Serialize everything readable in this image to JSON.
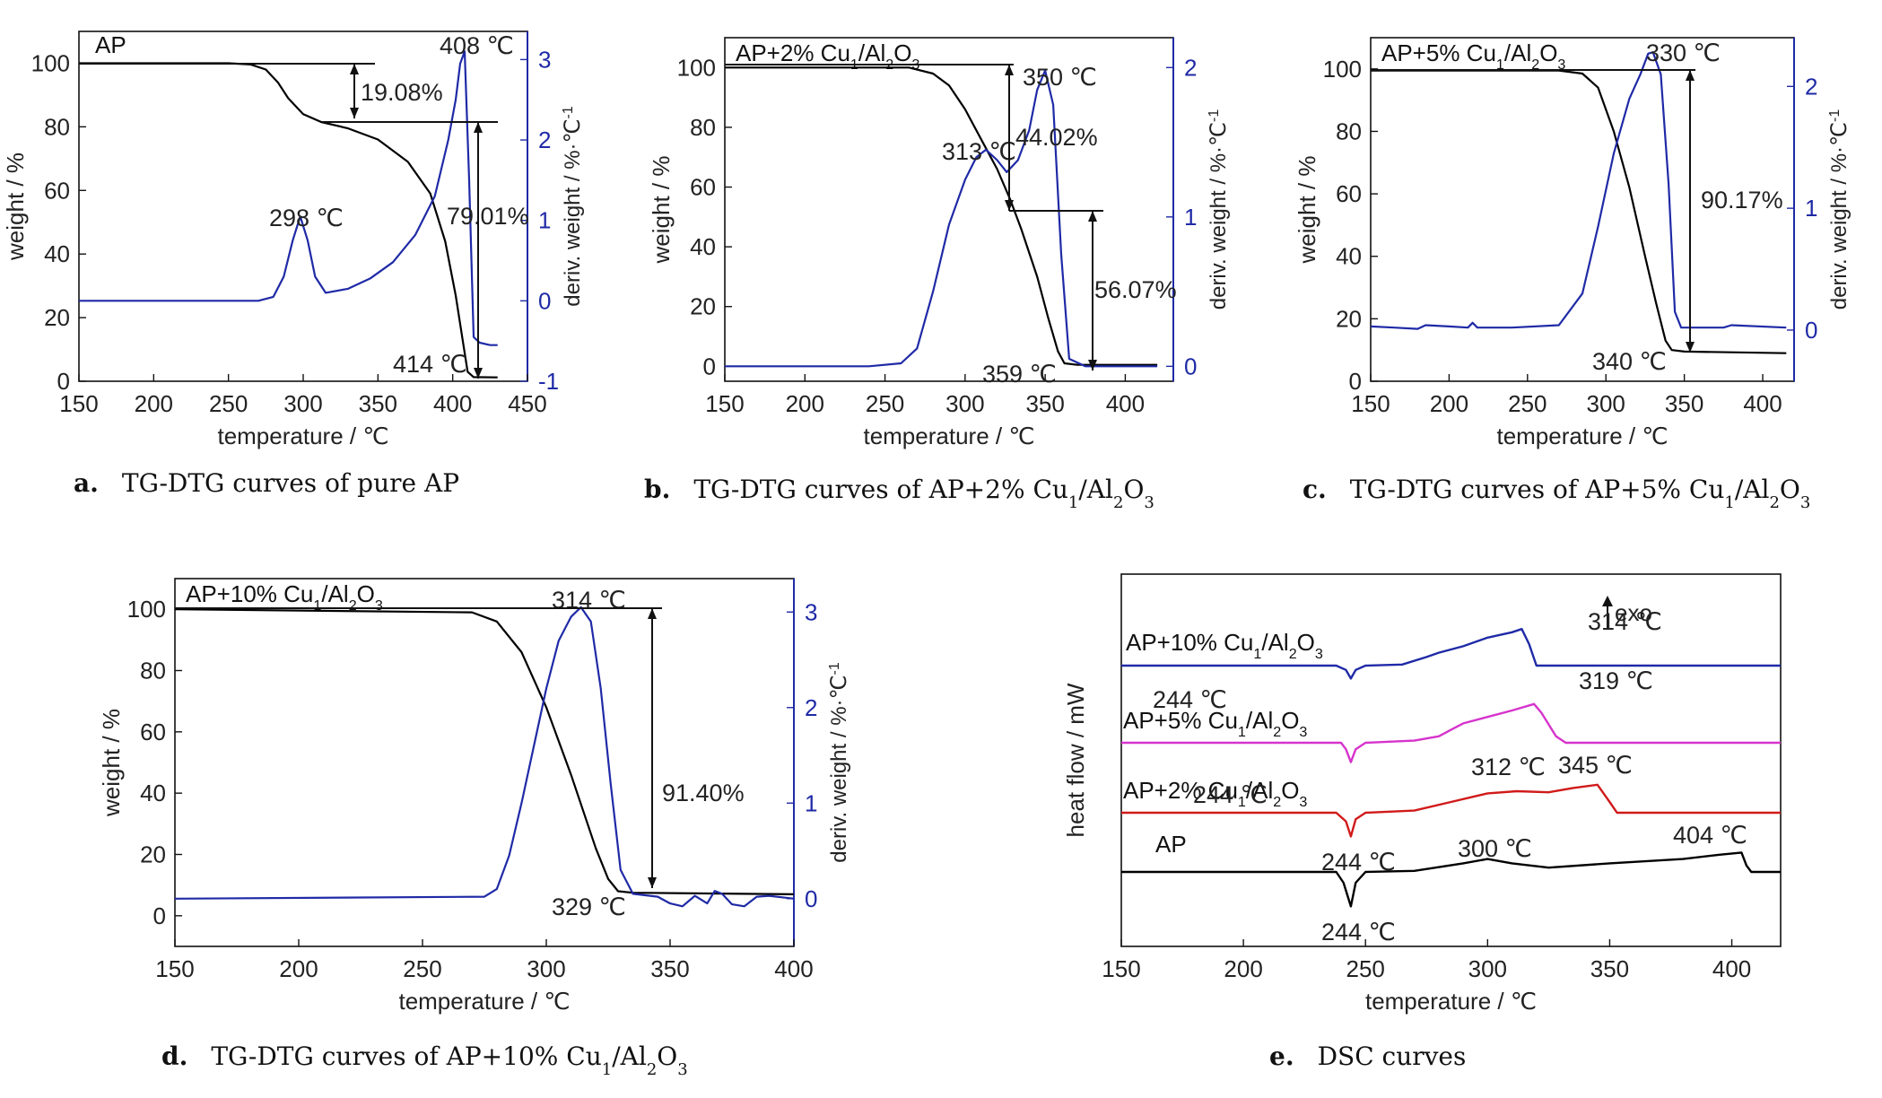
{
  "chart_data": [
    {
      "id": "a",
      "type": "line",
      "caption": {
        "letter": "a.",
        "text": "TG-DTG curves of pure AP"
      },
      "legend": "AP",
      "xlabel": "temperature / ℃",
      "ylabel": "weight / %",
      "y2label": "deriv. weight / %·℃",
      "y2label_sup": "-1",
      "xlim": [
        150,
        450
      ],
      "ylim": [
        0,
        110
      ],
      "y2lim": [
        -1,
        3.35
      ],
      "xticks": [
        150,
        200,
        250,
        300,
        350,
        400,
        450
      ],
      "yticks": [
        0,
        20,
        40,
        60,
        80,
        100
      ],
      "y2ticks": [
        -1,
        0,
        1,
        2,
        3
      ],
      "series": [
        {
          "axis": "left",
          "color": "#000000",
          "x": [
            150,
            250,
            265,
            275,
            283,
            290,
            300,
            312,
            330,
            350,
            370,
            385,
            395,
            402,
            407,
            410,
            414,
            430
          ],
          "y": [
            100,
            100,
            99.6,
            98,
            94,
            89,
            84,
            81.5,
            79.5,
            76,
            69,
            59,
            44,
            27,
            12,
            3,
            1.3,
            1.2
          ]
        },
        {
          "axis": "right",
          "color": "#1f2aa6",
          "x": [
            150,
            270,
            280,
            287,
            293,
            298,
            303,
            308,
            315,
            330,
            345,
            360,
            375,
            388,
            397,
            402,
            405,
            408,
            411,
            414,
            418,
            425,
            430
          ],
          "y": [
            0,
            0,
            0.05,
            0.3,
            0.75,
            1.05,
            0.75,
            0.3,
            0.1,
            0.15,
            0.28,
            0.48,
            0.82,
            1.3,
            2.0,
            2.5,
            2.95,
            3.1,
            1.5,
            -0.45,
            -0.52,
            -0.55,
            -0.55
          ]
        }
      ],
      "annotations": [
        "408 ℃",
        "19.08%",
        "298 ℃",
        "79.01%",
        "414 ℃"
      ]
    },
    {
      "id": "b",
      "type": "line",
      "caption": {
        "letter": "b.",
        "text": "TG-DTG curves of AP+2% Cu",
        "sub1": "1",
        "mid": "/Al",
        "sub2": "2",
        "tail": "O",
        "sub3": "3"
      },
      "legend": {
        "text": "AP+2% Cu",
        "sub1": "1",
        "mid": "/Al",
        "sub2": "2",
        "tail": "O",
        "sub3": "3"
      },
      "xlabel": "temperature / ℃",
      "ylabel": "weight / %",
      "y2label": "deriv. weight / %·℃",
      "y2label_sup": "-1",
      "xlim": [
        150,
        430
      ],
      "ylim": [
        -5,
        110
      ],
      "y2lim": [
        -0.1,
        2.2
      ],
      "xticks": [
        150,
        200,
        250,
        300,
        350,
        400
      ],
      "yticks": [
        0,
        20,
        40,
        60,
        80,
        100
      ],
      "y2ticks": [
        0,
        1,
        2
      ],
      "series": [
        {
          "axis": "left",
          "color": "#000000",
          "x": [
            150,
            265,
            280,
            290,
            300,
            310,
            320,
            328,
            335,
            345,
            352,
            358,
            362,
            370,
            420
          ],
          "y": [
            100,
            100,
            98,
            94,
            86,
            76,
            66,
            56,
            46,
            30,
            16,
            5,
            1,
            0.5,
            0.5
          ]
        },
        {
          "axis": "right",
          "color": "#1f2aa6",
          "x": [
            150,
            240,
            260,
            270,
            280,
            290,
            300,
            307,
            313,
            320,
            326,
            333,
            340,
            345,
            350,
            355,
            360,
            365,
            375,
            420
          ],
          "y": [
            0,
            0,
            0.02,
            0.12,
            0.5,
            0.95,
            1.25,
            1.4,
            1.45,
            1.38,
            1.3,
            1.38,
            1.58,
            1.85,
            1.98,
            1.75,
            0.75,
            0.05,
            0,
            0
          ]
        }
      ],
      "annotations": [
        "350 ℃",
        "313 ℃",
        "44.02%",
        "56.07%",
        "359 ℃"
      ]
    },
    {
      "id": "c",
      "type": "line",
      "caption": {
        "letter": "c.",
        "text": "TG-DTG curves of AP+5% Cu",
        "sub1": "1",
        "mid": "/Al",
        "sub2": "2",
        "tail": "O",
        "sub3": "3"
      },
      "legend": {
        "text": "AP+5% Cu",
        "sub1": "1",
        "mid": "/Al",
        "sub2": "2",
        "tail": "O",
        "sub3": "3"
      },
      "xlabel": "temperature / ℃",
      "ylabel": "weight / %",
      "y2label": "deriv. weight / %·℃",
      "y2label_sup": "-1",
      "xlim": [
        150,
        420
      ],
      "ylim": [
        0,
        110
      ],
      "y2lim": [
        -0.42,
        2.4
      ],
      "xticks": [
        150,
        200,
        250,
        300,
        350,
        400
      ],
      "yticks": [
        0,
        20,
        40,
        60,
        80,
        100
      ],
      "y2ticks": [
        0,
        1,
        2
      ],
      "series": [
        {
          "axis": "left",
          "color": "#000000",
          "x": [
            150,
            270,
            285,
            295,
            305,
            315,
            325,
            332,
            338,
            342,
            350,
            415
          ],
          "y": [
            99.5,
            99.5,
            98.5,
            94,
            80,
            62,
            40,
            25,
            13,
            10,
            9.5,
            9
          ]
        },
        {
          "axis": "right",
          "color": "#1f2aa6",
          "x": [
            150,
            165,
            180,
            185,
            200,
            212,
            215,
            218,
            240,
            270,
            285,
            295,
            305,
            315,
            322,
            327,
            330,
            335,
            340,
            344,
            348,
            360,
            375,
            380,
            415
          ],
          "y": [
            0.03,
            0.02,
            0.01,
            0.04,
            0.03,
            0.02,
            0.06,
            0.02,
            0.02,
            0.04,
            0.3,
            0.85,
            1.45,
            1.9,
            2.1,
            2.27,
            2.28,
            2.1,
            1.2,
            0.15,
            0.02,
            0.02,
            0.02,
            0.04,
            0.02
          ]
        }
      ],
      "annotations": [
        "330 ℃",
        "90.17%",
        "340 ℃"
      ]
    },
    {
      "id": "d",
      "type": "line",
      "caption": {
        "letter": "d.",
        "text": "TG-DTG curves of AP+10% Cu",
        "sub1": "1",
        "mid": "/Al",
        "sub2": "2",
        "tail": "O",
        "sub3": "3"
      },
      "legend": {
        "text": "AP+10% Cu",
        "sub1": "1",
        "mid": "/Al",
        "sub2": "2",
        "tail": "O",
        "sub3": "3"
      },
      "xlabel": "temperature / ℃",
      "ylabel": "weight / %",
      "y2label": "deriv. weight / %·℃",
      "y2label_sup": "-1",
      "xlim": [
        150,
        400
      ],
      "ylim": [
        -10,
        110
      ],
      "y2lim": [
        -0.5,
        3.35
      ],
      "xticks": [
        150,
        200,
        250,
        300,
        350,
        400
      ],
      "yticks": [
        0,
        20,
        40,
        60,
        80,
        100
      ],
      "y2ticks": [
        0,
        1,
        2,
        3
      ],
      "series": [
        {
          "axis": "left",
          "color": "#000000",
          "x": [
            150,
            270,
            280,
            290,
            300,
            310,
            320,
            325,
            329,
            335,
            400
          ],
          "y": [
            100,
            99,
            96,
            86,
            68,
            46,
            22,
            12,
            8,
            7.5,
            7
          ]
        },
        {
          "axis": "right",
          "color": "#1f2aa6",
          "x": [
            150,
            275,
            280,
            285,
            290,
            295,
            300,
            305,
            310,
            314,
            318,
            322,
            326,
            330,
            335,
            345,
            350,
            355,
            360,
            365,
            368,
            371,
            375,
            380,
            385,
            390,
            400
          ],
          "y": [
            0,
            0.02,
            0.1,
            0.45,
            1.0,
            1.6,
            2.2,
            2.7,
            2.95,
            3.05,
            2.9,
            2.2,
            1.2,
            0.3,
            0.05,
            0.02,
            -0.05,
            -0.08,
            0.03,
            -0.05,
            0.08,
            0.05,
            -0.06,
            -0.08,
            0.02,
            0.03,
            0
          ]
        }
      ],
      "annotations": [
        "314 ℃",
        "91.40%",
        "329 ℃"
      ]
    },
    {
      "id": "e",
      "type": "line",
      "caption": {
        "letter": "e.",
        "text": "DSC curves"
      },
      "xlabel": "temperature / ℃",
      "ylabel": "heat flow / mW",
      "xlim": [
        150,
        420
      ],
      "xticks": [
        150,
        200,
        250,
        300,
        350,
        400
      ],
      "exo_label": "exo",
      "series": [
        {
          "name_parts": {
            "text": "AP+10% Cu",
            "sub1": "1",
            "mid": "/Al",
            "sub2": "2",
            "tail": "O",
            "sub3": "3"
          },
          "color": "#1f2aa6",
          "offset": 3,
          "x": [
            150,
            238,
            242,
            244,
            246,
            250,
            265,
            275,
            280,
            290,
            300,
            310,
            314,
            317,
            320,
            330,
            420
          ],
          "y": [
            0,
            0,
            -0.2,
            -0.6,
            -0.2,
            0,
            0.05,
            0.4,
            0.6,
            0.9,
            1.3,
            1.55,
            1.7,
            1.0,
            0,
            0,
            0
          ]
        },
        {
          "name_parts": {
            "text": "AP+5% Cu",
            "sub1": "1",
            "mid": "/Al",
            "sub2": "2",
            "tail": "O",
            "sub3": "3"
          },
          "color": "#d633cc",
          "offset": 2,
          "x": [
            150,
            240,
            242,
            244,
            246,
            250,
            270,
            280,
            285,
            290,
            300,
            310,
            319,
            322,
            328,
            332,
            420
          ],
          "y": [
            0,
            0,
            -0.3,
            -0.9,
            -0.3,
            0,
            0.1,
            0.3,
            0.6,
            0.9,
            1.2,
            1.5,
            1.8,
            1.4,
            0.3,
            0,
            0
          ]
        },
        {
          "name_parts": {
            "text": "AP+2% Cu",
            "sub1": "1",
            "mid": "/Al",
            "sub2": "2",
            "tail": "O",
            "sub3": "3"
          },
          "color": "#d11a1a",
          "offset": 1,
          "x": [
            150,
            238,
            242,
            244,
            246,
            250,
            270,
            285,
            300,
            312,
            325,
            335,
            345,
            350,
            353,
            420
          ],
          "y": [
            0,
            0,
            -0.4,
            -1.1,
            -0.3,
            0,
            0.1,
            0.5,
            0.9,
            1.0,
            0.95,
            1.15,
            1.3,
            0.5,
            0,
            0
          ]
        },
        {
          "name_parts": {
            "text": "AP"
          },
          "color": "#000000",
          "offset": 0,
          "x": [
            150,
            238,
            241,
            244,
            246,
            250,
            270,
            290,
            300,
            310,
            325,
            350,
            380,
            395,
            404,
            406,
            408,
            420
          ],
          "y": [
            0,
            0,
            -0.5,
            -1.6,
            -0.5,
            0,
            0.05,
            0.4,
            0.6,
            0.4,
            0.2,
            0.4,
            0.6,
            0.8,
            0.9,
            0.3,
            0,
            0
          ]
        }
      ],
      "annotations": [
        "314 ℃",
        "244 ℃",
        "319 ℃",
        "312 ℃",
        "345 ℃",
        "244 ℃",
        "300 ℃",
        "404 ℃",
        "244 ℃",
        "244 ℃"
      ]
    }
  ]
}
